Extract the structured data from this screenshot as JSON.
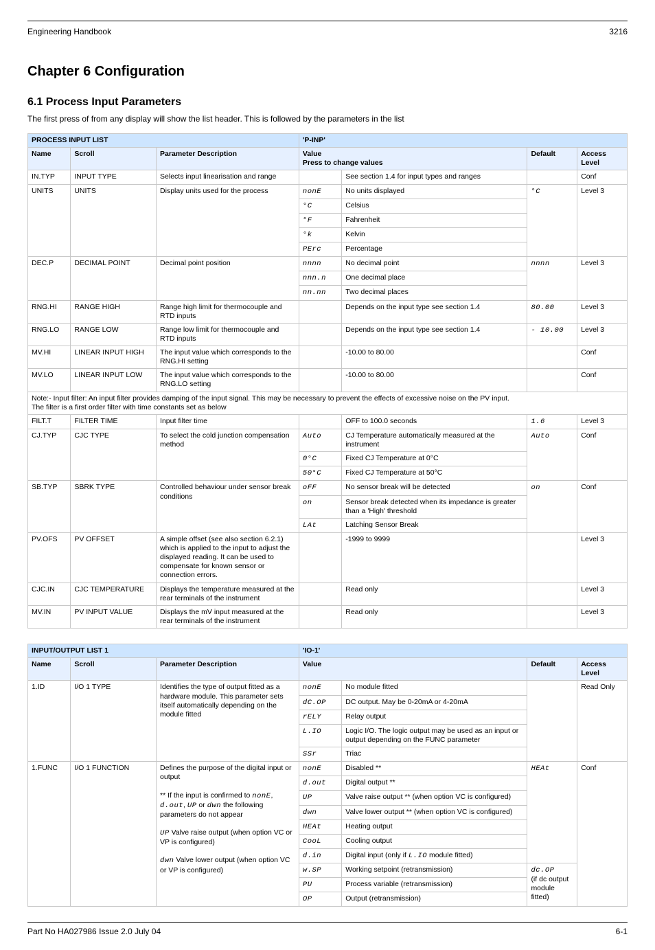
{
  "header": {
    "doc_id": "Engineering Handbook",
    "product": "3216"
  },
  "headings": {
    "h1": "Chapter 6 Configuration",
    "h2": "6.1 Process Input Parameters",
    "intro": "The first press of      from any display will show the list header. This is followed by the parameters in the list"
  },
  "table1": {
    "title_left": "PROCESS INPUT LIST",
    "title_right": "'P-INP'",
    "head": [
      "Name",
      "Scroll",
      "Parameter Description",
      "Value",
      "",
      "Default",
      "Access Level"
    ],
    "head_merge": {
      "value_press": "Press        to change values"
    },
    "rows": [
      {
        "name": "IN.TYP",
        "scroll": "INPUT TYPE",
        "desc": "Selects input linearisation and range",
        "values": [
          [
            "",
            "See section 1.4 for input types and ranges"
          ]
        ],
        "default": "",
        "access": "Conf"
      },
      {
        "name": "UNITS",
        "scroll": "UNITS",
        "desc": "Display units used for the process",
        "values": [
          [
            "nonE",
            "No units displayed"
          ],
          [
            "°C",
            "Celsius"
          ],
          [
            "°F",
            "Fahrenheit"
          ],
          [
            "°k",
            "Kelvin"
          ],
          [
            "PErc",
            "Percentage"
          ]
        ],
        "default_seg": "°C",
        "access": "Level 3"
      },
      {
        "name": "DEC.P",
        "scroll": "DECIMAL POINT",
        "desc": "Decimal point position",
        "values": [
          [
            "nnnn",
            "No decimal point"
          ],
          [
            "nnn.n",
            "One decimal place"
          ],
          [
            "nn.nn",
            "Two decimal places"
          ]
        ],
        "default_seg": "nnnn",
        "access": "Level 3"
      },
      {
        "name": "RNG.HI",
        "scroll": "RANGE HIGH",
        "desc": "Range high limit for thermocouple and RTD inputs",
        "values": [
          [
            "",
            "Depends on the input type see section 1.4"
          ]
        ],
        "default_seg": "80.00",
        "access": "Level 3"
      },
      {
        "name": "RNG.LO",
        "scroll": "RANGE LOW",
        "desc": "Range low limit for thermocouple and RTD inputs",
        "values": [
          [
            "",
            "Depends on the input type see section 1.4"
          ]
        ],
        "default_seg": "- 10.00",
        "access": "Level 3"
      },
      {
        "name": "MV.HI",
        "scroll": "LINEAR INPUT HIGH",
        "desc": "The input value which corresponds to the RNG.HI setting",
        "values": [
          [
            "",
            "-10.00 to 80.00"
          ]
        ],
        "default": "",
        "access": "Conf"
      },
      {
        "name": "MV.LO",
        "scroll": "LINEAR INPUT LOW",
        "desc": "The input value which corresponds to the RNG.LO setting",
        "values": [
          [
            "",
            "-10.00 to 80.00"
          ]
        ],
        "default": "",
        "access": "Conf"
      },
      {
        "note": "Note:- Input filter: An input filter provides damping of the input signal. This may be necessary to prevent the effects of excessive noise on the PV input.\nThe filter is a first order filter with time constants set as below"
      },
      {
        "name": "FILT.T",
        "scroll": "FILTER TIME",
        "desc": "Input filter time",
        "values": [
          [
            "",
            "OFF to 100.0 seconds"
          ]
        ],
        "default_seg": "1.6",
        "access": "Level 3"
      },
      {
        "name": "CJ.TYP",
        "scroll": "CJC TYPE",
        "desc": "To select the cold junction compensation method",
        "values": [
          [
            "Auto",
            "CJ Temperature automatically measured at the instrument"
          ],
          [
            "0°C",
            "Fixed CJ Temperature at 0°C"
          ],
          [
            "50°C",
            "Fixed CJ Temperature at 50°C"
          ]
        ],
        "default_seg": "Auto",
        "access": "Conf"
      },
      {
        "name": "SB.TYP",
        "scroll": "SBRK TYPE",
        "desc": "Controlled behaviour under sensor break conditions",
        "values": [
          [
            "oFF",
            "No sensor break will be detected"
          ],
          [
            "on",
            "Sensor break detected when its impedance is greater than a 'High' threshold"
          ],
          [
            "LAt",
            "Latching Sensor Break"
          ]
        ],
        "default_seg": "on",
        "access": "Conf"
      },
      {
        "name": "PV.OFS",
        "scroll": "PV OFFSET",
        "desc": "A simple offset (see also section 6.2.1) which is applied to the input to adjust the displayed reading. It can be used to compensate for known sensor or connection errors.",
        "values": [
          [
            "",
            "-1999 to 9999"
          ]
        ],
        "default": "",
        "access": "Level 3"
      },
      {
        "name": "CJC.IN",
        "scroll": "CJC TEMPERATURE",
        "desc": "Displays the temperature measured at the rear terminals of the instrument",
        "values": [
          [
            "",
            "Read only"
          ]
        ],
        "default": "",
        "access": "Level 3"
      },
      {
        "name": "MV.IN",
        "scroll": "PV INPUT VALUE",
        "desc": "Displays the mV input measured at the rear terminals of the instrument",
        "values": [
          [
            "",
            "Read only"
          ]
        ],
        "default": "",
        "access": "Level 3"
      }
    ]
  },
  "table2": {
    "title_left": "INPUT/OUTPUT LIST 1",
    "title_right": "'IO-1'",
    "head": [
      "Name",
      "Scroll",
      "Parameter Description",
      "Value",
      "",
      "Default",
      "Access Level"
    ],
    "rows": [
      {
        "name": "1.ID",
        "scroll": "I/O 1 TYPE",
        "desc": "Identifies the type of output fitted as a hardware module. This parameter sets itself automatically depending on the module fitted",
        "values": [
          [
            "nonE",
            "No module fitted"
          ],
          [
            "dC.OP",
            "DC output. May be 0-20mA or 4-20mA"
          ],
          [
            "rELY",
            "Relay output"
          ],
          [
            "L.IO",
            "Logic I/O. The logic output may be used as an input or output depending on the FUNC parameter"
          ],
          [
            "SSr",
            "Triac"
          ]
        ],
        "default": "",
        "access": "Read Only"
      },
      {
        "name": "1.FUNC",
        "scroll": "I/O 1 FUNCTION",
        "desc_multi": [
          "Defines the purpose of the digital input or output",
          "** If the input is confirmed to none, d.out, UP or dwn the following parameters do not appear",
          "UP Valve raise output (when option VC or VP is configured)",
          "dwn Valve lower output (when option VC or VP is configured)"
        ],
        "values": [
          [
            "nonE",
            "Disabled **"
          ],
          [
            "d.out",
            "Digital output **"
          ],
          [
            "UP",
            "Valve raise output ** (when option VC is configured)"
          ],
          [
            "dwn",
            "Valve lower output ** (when option VC is configured)"
          ],
          [
            "HEAt",
            "Heating output"
          ],
          [
            "CooL",
            "Cooling output"
          ],
          [
            "d.in",
            "Digital input (only if L.IO module fitted)"
          ],
          [
            "w.SP",
            "Working setpoint (retransmission)"
          ],
          [
            "PU",
            "Process variable (retransmission)"
          ],
          [
            "OP",
            "Output (retransmission)"
          ]
        ],
        "default_seg1": "HEAt",
        "default_seg2": "dc.OP",
        "access": "Conf"
      }
    ],
    "default2_extra": "(if dc output module fitted)"
  },
  "footer": {
    "left": "Part No HA027986 Issue 2.0 July 04",
    "right": "6-1"
  }
}
